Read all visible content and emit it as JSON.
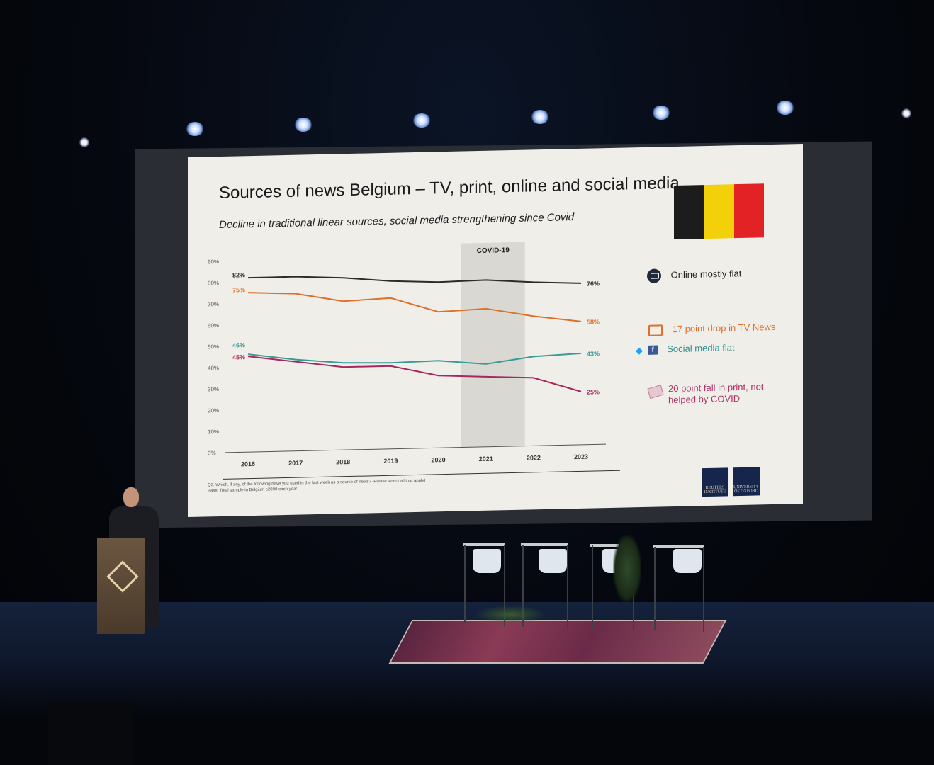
{
  "slide": {
    "title": "Sources of news Belgium – TV, print, online and social media",
    "subtitle": "Decline in traditional linear sources, social media strengthening since Covid",
    "flag_colors": [
      "#1c1c1c",
      "#f2d10a",
      "#e32226"
    ],
    "covid_band_label": "COVID-19",
    "annotations": [
      {
        "text": "Online mostly flat",
        "color": "#222222",
        "icon": "laptop-icon"
      },
      {
        "text": "17 point drop in TV News",
        "color": "#e07028",
        "icon": "tv-icon"
      },
      {
        "text": "Social media flat",
        "color": "#2e8f8c",
        "icon": "twitter-facebook-icon"
      },
      {
        "text": "20 point fall in print, not helped by COVID",
        "color": "#b03068",
        "icon": "newspaper-icon"
      }
    ],
    "footnote_lines": [
      "Q3. Which, if any, of the following have you used in the last week as a source of news? (Please select all that apply)",
      "Base: Total sample in Belgium c2000 each year"
    ],
    "logos": [
      {
        "text": "REUTERS INSTITUTE"
      },
      {
        "text": "UNIVERSITY OF OXFORD"
      }
    ]
  },
  "chart_data": {
    "type": "line",
    "title": "Sources of news Belgium – TV, print, online and social media",
    "x": [
      "2016",
      "2017",
      "2018",
      "2019",
      "2020",
      "2021",
      "2022",
      "2023"
    ],
    "ylim": [
      0,
      90
    ],
    "yticks": [
      "0%",
      "10%",
      "20%",
      "30%",
      "40%",
      "50%",
      "60%",
      "70%",
      "80%",
      "90%"
    ],
    "highlight_band": {
      "from": "2021",
      "label": "COVID-19"
    },
    "series": [
      {
        "color": "#2b2b2b",
        "values": [
          82,
          82,
          81,
          79,
          78,
          78.5,
          77,
          76
        ],
        "start_label": "82%",
        "end_label": "76%"
      },
      {
        "color": "#e07028",
        "values": [
          75,
          74,
          70,
          71,
          64,
          65,
          61,
          58
        ],
        "start_label": "75%",
        "end_label": "58%"
      },
      {
        "color": "#3a9a96",
        "values": [
          46,
          43,
          41,
          40.5,
          41,
          39,
          42,
          43
        ],
        "start_label": "46%",
        "end_label": "43%"
      },
      {
        "color": "#a8285e",
        "values": [
          45,
          42,
          39,
          39,
          34,
          33,
          32,
          25
        ],
        "start_label": "45%",
        "end_label": "25%"
      }
    ]
  }
}
